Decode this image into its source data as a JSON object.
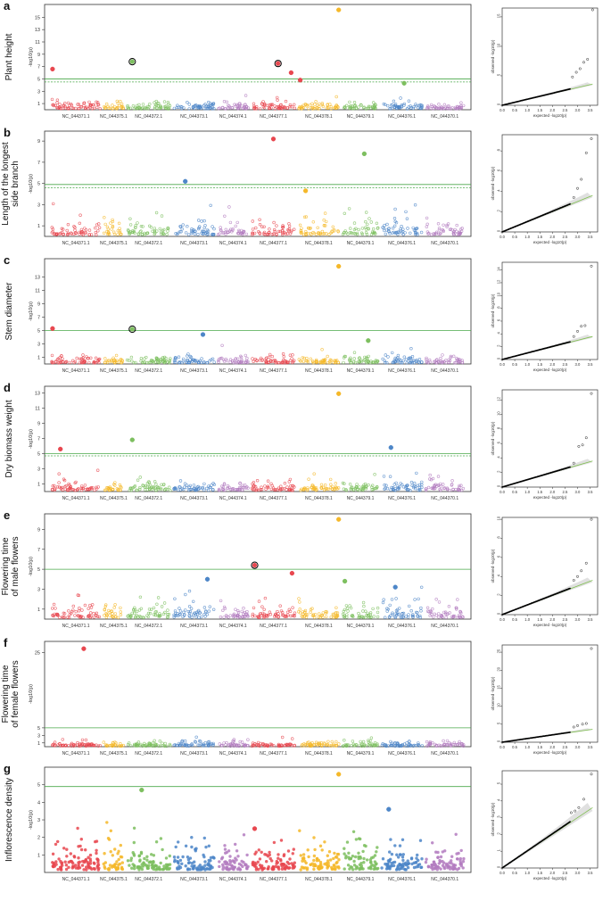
{
  "colors": {
    "chr": [
      "#e8474f",
      "#f5b829",
      "#7dbf5f",
      "#4d86c8",
      "#b37cc0"
    ],
    "threshold": "#4aa84a",
    "qq_band": "#cccccc",
    "qq_line": "#7fbf4f",
    "axis": "#333333"
  },
  "chart_data": [
    {
      "type": "scatter",
      "panel_letter": "a",
      "trait": [
        "Plant height"
      ],
      "manhattan": {
        "ylabel": "-log10(p)",
        "ylim": [
          0,
          16.5
        ],
        "yticks": [
          1,
          3,
          5,
          7,
          9,
          11,
          13,
          15
        ],
        "threshold_solid": 5.0,
        "threshold_dashed": 4.5,
        "chromosomes": [
          "NC_044371.1",
          "NC_044375.1",
          "NC_044372.1",
          "NC_044373.1",
          "NC_044374.1",
          "NC_044377.1",
          "NC_044378.1",
          "NC_044379.1",
          "NC_044376.1",
          "NC_044370.1"
        ],
        "peak_points": [
          {
            "chr": 1,
            "pos": 0.05,
            "y": 6.6,
            "ci": 0,
            "ring": false
          },
          {
            "chr": 3,
            "pos": 0.15,
            "y": 7.8,
            "ci": 2,
            "ring": true
          },
          {
            "chr": 6,
            "pos": 0.6,
            "y": 7.5,
            "ci": 0,
            "ring": true
          },
          {
            "chr": 6,
            "pos": 0.88,
            "y": 6.0,
            "ci": 0,
            "ring": false
          },
          {
            "chr": 7,
            "pos": 0.08,
            "y": 4.8,
            "ci": 0,
            "ring": false
          },
          {
            "chr": 7,
            "pos": 0.95,
            "y": 16.2,
            "ci": 1,
            "ring": false
          },
          {
            "chr": 9,
            "pos": 0.55,
            "y": 4.3,
            "ci": 2,
            "ring": false
          }
        ],
        "background_max": 2.6
      },
      "qq": {
        "xlabel": "expected -log10(p)",
        "ylabel": "observed -log10(p)",
        "xticks": [
          0.0,
          0.5,
          1.0,
          1.5,
          2.0,
          2.5,
          3.0,
          3.5
        ],
        "yticks": [
          0,
          5,
          10,
          15
        ],
        "ylim": [
          0,
          16.5
        ],
        "tail": [
          [
            2.8,
            4.8
          ],
          [
            2.95,
            5.6
          ],
          [
            3.1,
            6.2
          ],
          [
            3.25,
            7.3
          ],
          [
            3.4,
            7.8
          ],
          [
            3.6,
            16.2
          ]
        ]
      }
    },
    {
      "type": "scatter",
      "panel_letter": "b",
      "trait": [
        "Length of the longest",
        "side branch"
      ],
      "manhattan": {
        "ylabel": "-log10(p)",
        "ylim": [
          0,
          9.6
        ],
        "yticks": [
          1,
          3,
          5,
          7,
          9
        ],
        "threshold_solid": 4.9,
        "threshold_dashed": 4.6,
        "chromosomes": [
          "NC_044371.1",
          "NC_044375.1",
          "NC_044372.1",
          "NC_044373.1",
          "NC_044374.1",
          "NC_044377.1",
          "NC_044378.1",
          "NC_044379.1",
          "NC_044376.1",
          "NC_044370.1"
        ],
        "peak_points": [
          {
            "chr": 4,
            "pos": 0.3,
            "y": 5.2,
            "ci": 3,
            "ring": false
          },
          {
            "chr": 6,
            "pos": 0.5,
            "y": 9.2,
            "ci": 0,
            "ring": false
          },
          {
            "chr": 7,
            "pos": 0.2,
            "y": 4.3,
            "ci": 1,
            "ring": false
          },
          {
            "chr": 8,
            "pos": 0.6,
            "y": 7.8,
            "ci": 2,
            "ring": false
          }
        ],
        "background_max": 3.1
      },
      "qq": {
        "xlabel": "expected -log10(p)",
        "ylabel": "observed -log10(p)",
        "xticks": [
          0.0,
          0.5,
          1.0,
          1.5,
          2.0,
          2.5,
          3.0,
          3.5
        ],
        "yticks": [
          0,
          2,
          4,
          6,
          8
        ],
        "ylim": [
          0,
          9.6
        ],
        "tail": [
          [
            2.85,
            3.4
          ],
          [
            3.0,
            4.3
          ],
          [
            3.15,
            5.2
          ],
          [
            3.35,
            7.8
          ],
          [
            3.55,
            9.2
          ]
        ]
      }
    },
    {
      "type": "scatter",
      "panel_letter": "c",
      "trait": [
        "Stem diameter"
      ],
      "manhattan": {
        "ylabel": "-log10(p)",
        "ylim": [
          0,
          15.2
        ],
        "yticks": [
          1,
          3,
          5,
          7,
          9,
          11,
          13
        ],
        "threshold_solid": 5.0,
        "threshold_dashed": null,
        "chromosomes": [
          "NC_044371.1",
          "NC_044375.1",
          "NC_044372.1",
          "NC_044373.1",
          "NC_044374.1",
          "NC_044377.1",
          "NC_044378.1",
          "NC_044379.1",
          "NC_044376.1",
          "NC_044370.1"
        ],
        "peak_points": [
          {
            "chr": 1,
            "pos": 0.05,
            "y": 5.3,
            "ci": 0,
            "ring": false
          },
          {
            "chr": 3,
            "pos": 0.15,
            "y": 5.2,
            "ci": 2,
            "ring": true
          },
          {
            "chr": 4,
            "pos": 0.7,
            "y": 4.4,
            "ci": 3,
            "ring": false
          },
          {
            "chr": 7,
            "pos": 0.95,
            "y": 14.6,
            "ci": 1,
            "ring": false
          },
          {
            "chr": 8,
            "pos": 0.7,
            "y": 3.5,
            "ci": 2,
            "ring": false
          }
        ],
        "background_max": 2.9
      },
      "qq": {
        "xlabel": "expected -log10(p)",
        "ylabel": "observed -log10(p)",
        "xticks": [
          0.0,
          0.5,
          1.0,
          1.5,
          2.0,
          2.5,
          3.0,
          3.5
        ],
        "yticks": [
          0,
          2,
          4,
          6,
          8,
          10,
          12,
          14
        ],
        "ylim": [
          0,
          15.2
        ],
        "tail": [
          [
            2.85,
            3.6
          ],
          [
            3.0,
            4.4
          ],
          [
            3.15,
            5.2
          ],
          [
            3.3,
            5.3
          ],
          [
            3.55,
            14.6
          ]
        ]
      }
    },
    {
      "type": "scatter",
      "panel_letter": "d",
      "trait": [
        "Dry biomass weight"
      ],
      "manhattan": {
        "ylabel": "-log10(p)",
        "ylim": [
          0,
          13.4
        ],
        "yticks": [
          1,
          3,
          5,
          7,
          9,
          11,
          13
        ],
        "threshold_solid": 5.0,
        "threshold_dashed": 4.7,
        "chromosomes": [
          "NC_044371.1",
          "NC_044375.1",
          "NC_044372.1",
          "NC_044373.1",
          "NC_044374.1",
          "NC_044377.1",
          "NC_044378.1",
          "NC_044379.1",
          "NC_044376.1",
          "NC_044370.1"
        ],
        "peak_points": [
          {
            "chr": 1,
            "pos": 0.2,
            "y": 5.6,
            "ci": 0,
            "ring": false
          },
          {
            "chr": 3,
            "pos": 0.15,
            "y": 6.8,
            "ci": 2,
            "ring": false
          },
          {
            "chr": 7,
            "pos": 0.95,
            "y": 12.9,
            "ci": 1,
            "ring": false
          },
          {
            "chr": 9,
            "pos": 0.25,
            "y": 5.8,
            "ci": 3,
            "ring": false
          }
        ],
        "background_max": 2.8
      },
      "qq": {
        "xlabel": "expected -log10(p)",
        "ylabel": "observed -log10(p)",
        "xticks": [
          0.0,
          0.5,
          1.0,
          1.5,
          2.0,
          2.5,
          3.0,
          3.5
        ],
        "yticks": [
          0,
          2,
          4,
          6,
          8,
          10,
          12
        ],
        "ylim": [
          0,
          13.4
        ],
        "tail": [
          [
            2.85,
            3.3
          ],
          [
            3.05,
            5.6
          ],
          [
            3.2,
            5.8
          ],
          [
            3.35,
            6.8
          ],
          [
            3.55,
            12.9
          ]
        ]
      }
    },
    {
      "type": "scatter",
      "panel_letter": "e",
      "trait": [
        "Flowering time",
        "of male flowers"
      ],
      "manhattan": {
        "ylabel": "-log10(p)",
        "ylim": [
          0,
          10.2
        ],
        "yticks": [
          1,
          3,
          5,
          7,
          9
        ],
        "threshold_solid": 5.0,
        "threshold_dashed": null,
        "chromosomes": [
          "NC_044371.1",
          "NC_044375.1",
          "NC_044372.1",
          "NC_044373.1",
          "NC_044374.1",
          "NC_044377.1",
          "NC_044378.1",
          "NC_044379.1",
          "NC_044376.1",
          "NC_044370.1"
        ],
        "peak_points": [
          {
            "chr": 4,
            "pos": 0.8,
            "y": 4.0,
            "ci": 3,
            "ring": false
          },
          {
            "chr": 6,
            "pos": 0.1,
            "y": 5.4,
            "ci": 0,
            "ring": true
          },
          {
            "chr": 6,
            "pos": 0.9,
            "y": 4.6,
            "ci": 0,
            "ring": false
          },
          {
            "chr": 7,
            "pos": 0.95,
            "y": 10.0,
            "ci": 1,
            "ring": false
          },
          {
            "chr": 8,
            "pos": 0.1,
            "y": 3.8,
            "ci": 2,
            "ring": false
          },
          {
            "chr": 9,
            "pos": 0.35,
            "y": 3.2,
            "ci": 3,
            "ring": false
          }
        ],
        "background_max": 3.2
      },
      "qq": {
        "xlabel": "expected -log10(p)",
        "ylabel": "observed -log10(p)",
        "xticks": [
          0.0,
          0.5,
          1.0,
          1.5,
          2.0,
          2.5,
          3.0,
          3.5
        ],
        "yticks": [
          0,
          2,
          4,
          6,
          8,
          10
        ],
        "ylim": [
          0,
          10.2
        ],
        "tail": [
          [
            2.85,
            3.6
          ],
          [
            3.0,
            4.0
          ],
          [
            3.15,
            4.6
          ],
          [
            3.35,
            5.4
          ],
          [
            3.55,
            10.0
          ]
        ]
      }
    },
    {
      "type": "scatter",
      "panel_letter": "f",
      "trait": [
        "Flowering time",
        "of female flowers"
      ],
      "manhattan": {
        "ylabel": "-log10(p)",
        "ylim": [
          0,
          27
        ],
        "yticks": [
          1,
          3,
          5,
          25
        ],
        "threshold_solid": 5.0,
        "threshold_dashed": null,
        "chromosomes": [
          "NC_044371.1",
          "NC_044375.1",
          "NC_044372.1",
          "NC_044373.1",
          "NC_044374.1",
          "NC_044377.1",
          "NC_044378.1",
          "NC_044379.1",
          "NC_044376.1",
          "NC_044370.1"
        ],
        "peak_points": [
          {
            "chr": 1,
            "pos": 0.65,
            "y": 26.0,
            "ci": 0,
            "ring": false
          }
        ],
        "background_max": 3.0
      },
      "qq": {
        "xlabel": "expected -log10(p)",
        "ylabel": "observed -log10(p)",
        "xticks": [
          0.0,
          0.5,
          1.0,
          1.5,
          2.0,
          2.5,
          3.0,
          3.5
        ],
        "yticks": [
          0,
          5,
          10,
          15,
          20,
          25
        ],
        "ylim": [
          0,
          27
        ],
        "tail": [
          [
            2.85,
            4.2
          ],
          [
            3.0,
            4.6
          ],
          [
            3.2,
            5.0
          ],
          [
            3.35,
            5.2
          ],
          [
            3.55,
            26.0
          ]
        ]
      }
    },
    {
      "type": "scatter",
      "panel_letter": "g",
      "trait": [
        "Inflorescence density"
      ],
      "manhattan": {
        "ylabel": "-log10(p)",
        "ylim": [
          0,
          5.8
        ],
        "yticks": [
          1,
          2,
          3,
          4,
          5
        ],
        "threshold_solid": 4.9,
        "threshold_dashed": null,
        "chromosomes": [
          "NC_044371.1",
          "NC_044375.1",
          "NC_044372.1",
          "NC_044373.1",
          "NC_044374.1",
          "NC_044377.1",
          "NC_044378.1",
          "NC_044379.1",
          "NC_044376.1",
          "NC_044370.1"
        ],
        "peak_points": [
          {
            "chr": 3,
            "pos": 0.35,
            "y": 4.7,
            "ci": 2,
            "ring": false
          },
          {
            "chr": 6,
            "pos": 0.1,
            "y": 2.5,
            "ci": 0,
            "ring": false
          },
          {
            "chr": 7,
            "pos": 0.95,
            "y": 5.6,
            "ci": 1,
            "ring": false
          },
          {
            "chr": 9,
            "pos": 0.2,
            "y": 3.6,
            "ci": 3,
            "ring": false
          }
        ],
        "background_max": 3.3
      },
      "qq": {
        "xlabel": "expected -log10(p)",
        "ylabel": "observed -log10(p)",
        "xticks": [
          0.0,
          0.5,
          1.0,
          1.5,
          2.0,
          2.5,
          3.0,
          3.5
        ],
        "yticks": [
          0,
          1,
          2,
          3,
          4,
          5
        ],
        "ylim": [
          0,
          5.8
        ],
        "tail": [
          [
            2.75,
            3.3
          ],
          [
            2.9,
            3.4
          ],
          [
            3.05,
            3.6
          ],
          [
            3.25,
            4.1
          ],
          [
            3.55,
            5.6
          ]
        ]
      }
    }
  ]
}
